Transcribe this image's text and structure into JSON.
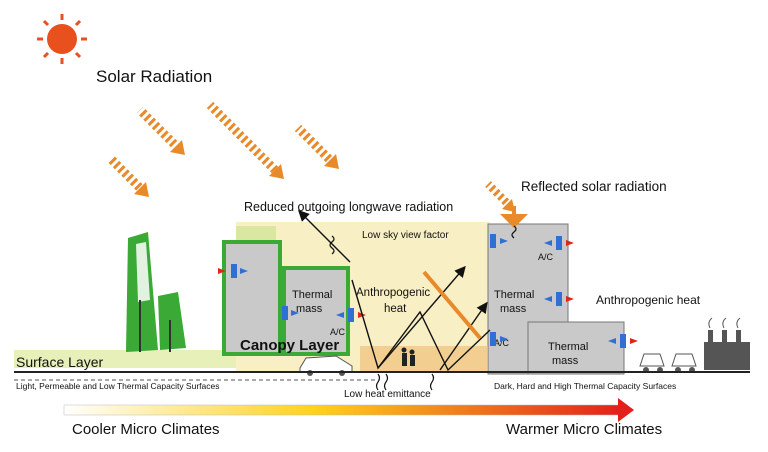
{
  "labels": {
    "solar_radiation": "Solar Radiation",
    "reduced_longwave": "Reduced outgoing longwave radiation",
    "reflected_solar": "Reflected solar radiation",
    "low_sky_view": "Low sky view factor",
    "thermal_mass": "Thermal mass",
    "thermal": "Thermal",
    "mass": "mass",
    "ac": "A/C",
    "anthropogenic": "Anthropogenic",
    "heat": "heat",
    "anthropogenic_heat": "Anthropogenic heat",
    "canopy_layer": "Canopy Layer",
    "surface_layer": "Surface Layer",
    "left_surfaces": "Light, Permeable and Low Thermal Capacity Surfaces",
    "low_heat_emittance": "Low heat emittance",
    "right_surfaces": "Dark, Hard and High Thermal Capacity Surfaces",
    "cooler": "Cooler Micro Climates",
    "warmer": "Warmer Micro Climates"
  },
  "colors": {
    "sun": "#e8501e",
    "solar_arrow": "#e8892a",
    "building_green": "#3aa935",
    "building_grey": "#c9c9c9",
    "canopy_fill": "#f8efc4",
    "heat_arrow_red": "#e0261b",
    "ac_blue": "#2f6fd6",
    "gradient_start": "#ffffff",
    "gradient_mid": "#ffd21a",
    "gradient_end": "#e3201b"
  }
}
